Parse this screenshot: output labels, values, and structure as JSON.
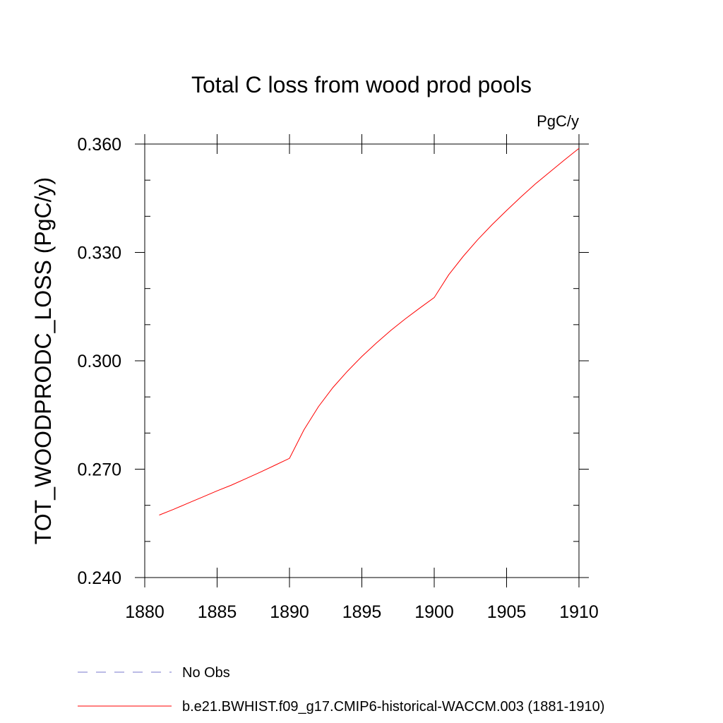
{
  "chart_data": {
    "type": "line",
    "title": "Total C loss from wood prod pools",
    "units_label": "PgC/y",
    "xlabel": "",
    "ylabel": "TOT_WOODPRODC_LOSS  (PgC/y)",
    "xlim": [
      1880,
      1910
    ],
    "ylim": [
      0.24,
      0.36
    ],
    "x_ticks": [
      1880,
      1885,
      1890,
      1895,
      1900,
      1905,
      1910
    ],
    "x_tick_labels": [
      "1880",
      "1885",
      "1890",
      "1895",
      "1900",
      "1905",
      "1910"
    ],
    "y_ticks": [
      0.24,
      0.27,
      0.3,
      0.33,
      0.36
    ],
    "y_tick_labels": [
      "0.240",
      "0.270",
      "0.300",
      "0.330",
      "0.360"
    ],
    "grid": false,
    "legend_position": "bottom",
    "series": [
      {
        "name": "No Obs",
        "color": "#7777cc",
        "dash": "dashed",
        "x": [],
        "values": []
      },
      {
        "name": "b.e21.BWHIST.f09_g17.CMIP6-historical-WACCM.003 (1881-1910)",
        "color": "#ff0000",
        "dash": "solid",
        "x": [
          1881,
          1882,
          1883,
          1884,
          1885,
          1886,
          1887,
          1888,
          1889,
          1890,
          1891,
          1892,
          1893,
          1894,
          1895,
          1896,
          1897,
          1898,
          1899,
          1900,
          1901,
          1902,
          1903,
          1904,
          1905,
          1906,
          1907,
          1908,
          1909,
          1910
        ],
        "values": [
          0.2573,
          0.2589,
          0.2606,
          0.2623,
          0.264,
          0.2656,
          0.2674,
          0.2692,
          0.2711,
          0.273,
          0.2809,
          0.2873,
          0.2926,
          0.2971,
          0.3012,
          0.3049,
          0.3084,
          0.3116,
          0.3146,
          0.3175,
          0.3238,
          0.3289,
          0.3335,
          0.3377,
          0.3416,
          0.3454,
          0.349,
          0.3523,
          0.3556,
          0.3588
        ]
      }
    ]
  }
}
